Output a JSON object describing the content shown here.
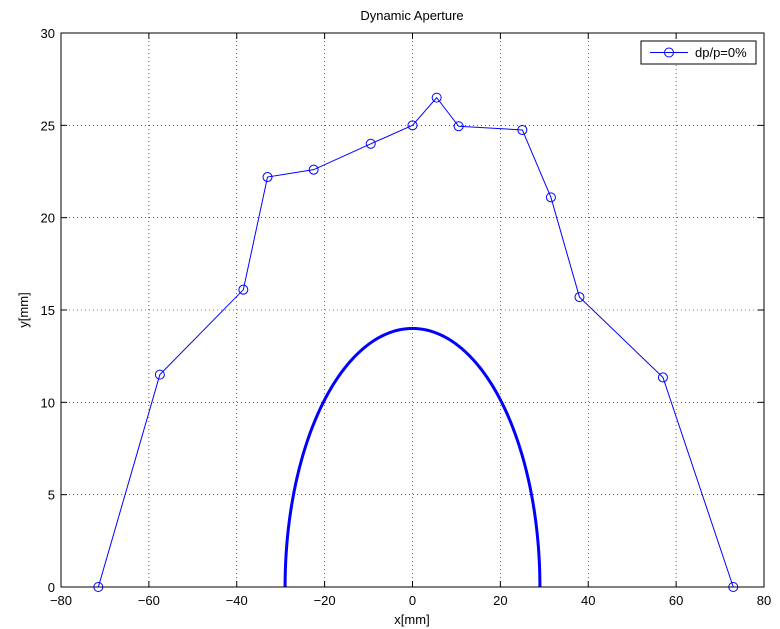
{
  "chart_data": {
    "type": "line",
    "title": "Dynamic Aperture",
    "xlabel": "x[mm]",
    "ylabel": "y[mm]",
    "xlim": [
      -80,
      80
    ],
    "ylim": [
      0,
      30
    ],
    "xticks": [
      -80,
      -60,
      -40,
      -20,
      0,
      20,
      40,
      60,
      80
    ],
    "yticks": [
      0,
      5,
      10,
      15,
      20,
      25,
      30
    ],
    "grid": true,
    "legend_position": "top-right",
    "series": [
      {
        "name": "dp/p=0%",
        "color": "#0000ff",
        "marker": "circle",
        "x": [
          -71.5,
          -57.5,
          -38.5,
          -33.0,
          -22.5,
          -9.5,
          0.0,
          5.5,
          10.5,
          25.0,
          31.5,
          38.0,
          57.0,
          73.0
        ],
        "y": [
          0.0,
          11.5,
          16.1,
          22.2,
          22.6,
          24.0,
          25.0,
          26.5,
          24.95,
          24.75,
          21.1,
          15.7,
          11.35,
          0.0
        ]
      },
      {
        "color": "#0000ff",
        "marker": "none",
        "shape": "half-ellipse",
        "center_x": 0,
        "semi_axis_x": 29,
        "semi_axis_y": 14
      }
    ]
  }
}
